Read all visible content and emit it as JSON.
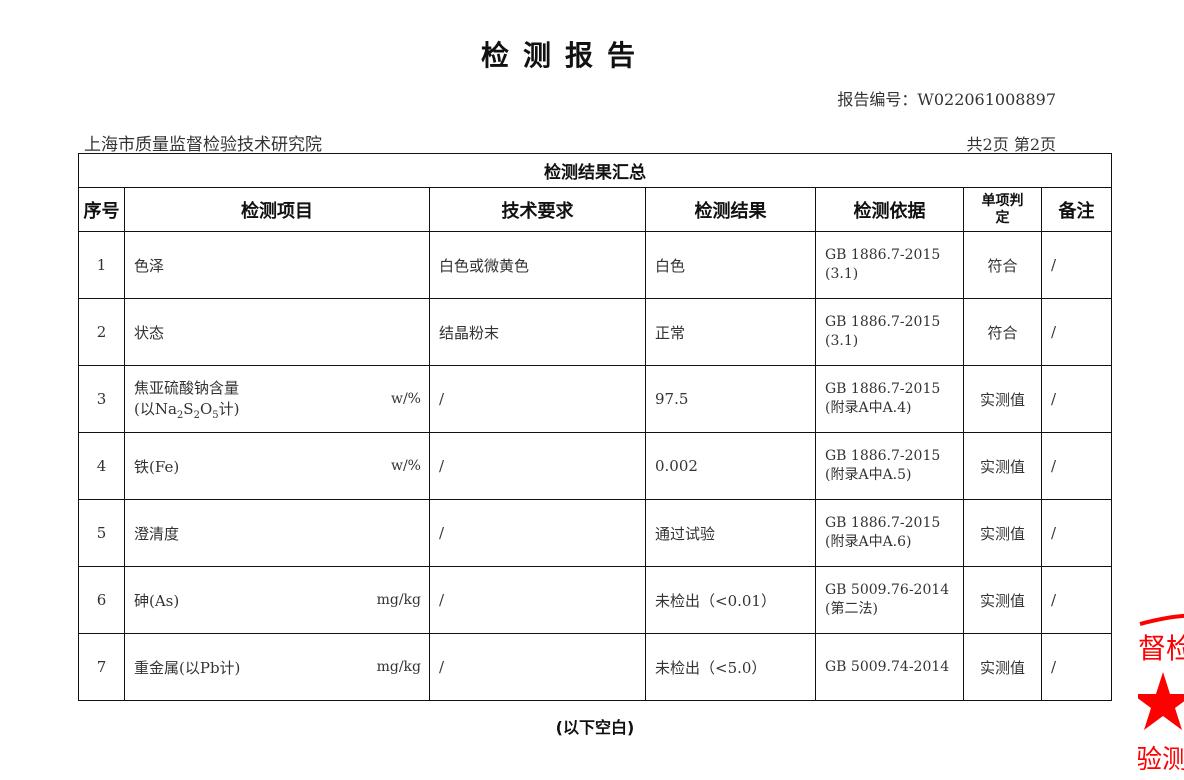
{
  "title": "检测报告",
  "report_no": "报告编号：W022061008897",
  "institute": "上海市质量监督检验技术研究院",
  "pages": "共2页  第2页",
  "table": {
    "caption": "检测结果汇总",
    "headers": [
      "序号",
      "检测项目",
      "技术要求",
      "检测结果",
      "检测依据",
      "单项判定",
      "备注"
    ],
    "rows": [
      {
        "no": "1",
        "item": "色泽",
        "unit": "",
        "req": "白色或微黄色",
        "result": "白色",
        "basis": "GB 1886.7-2015",
        "basis2": "(3.1)",
        "judge": "符合",
        "note": "/"
      },
      {
        "no": "2",
        "item": "状态",
        "unit": "",
        "req": "结晶粉末",
        "result": "正常",
        "basis": "GB 1886.7-2015",
        "basis2": "(3.1)",
        "judge": "符合",
        "note": "/"
      },
      {
        "no": "3",
        "item": "焦亚硫酸钠含量",
        "unit": "w/%",
        "req": "/",
        "result": "97.5",
        "basis": "GB 1886.7-2015",
        "basis2": "(附录A中A.4)",
        "judge": "实测值",
        "note": "/"
      },
      {
        "no": "4",
        "item": "铁(Fe)",
        "unit": "w/%",
        "req": "/",
        "result": "0.002",
        "basis": "GB 1886.7-2015",
        "basis2": "(附录A中A.5)",
        "judge": "实测值",
        "note": "/"
      },
      {
        "no": "5",
        "item": "澄清度",
        "unit": "",
        "req": "/",
        "result": "通过试验",
        "basis": "GB 1886.7-2015",
        "basis2": "(附录A中A.6)",
        "judge": "实测值",
        "note": "/"
      },
      {
        "no": "6",
        "item": "砷(As)",
        "unit": "mg/kg",
        "req": "/",
        "result": "未检出（<0.01）",
        "basis": "GB 5009.76-2014",
        "basis2": "(第二法)",
        "judge": "实测值",
        "note": "/"
      },
      {
        "no": "7",
        "item": "重金属(以Pb计)",
        "unit": "mg/kg",
        "req": "/",
        "result": "未检出（<5.0）",
        "basis": "GB 5009.74-2014",
        "basis2": "",
        "judge": "实测值",
        "note": "/"
      }
    ],
    "row3_sub": {
      "open": "(以Na",
      "s1": "2",
      "mid": "S",
      "s2": "2",
      "o": "O",
      "s3": "5",
      "close": "计)"
    }
  },
  "footer": "(以下空白)",
  "stamp": {
    "top_text": "督检",
    "bottom_text": "验测专",
    "color": "#ff0000"
  }
}
